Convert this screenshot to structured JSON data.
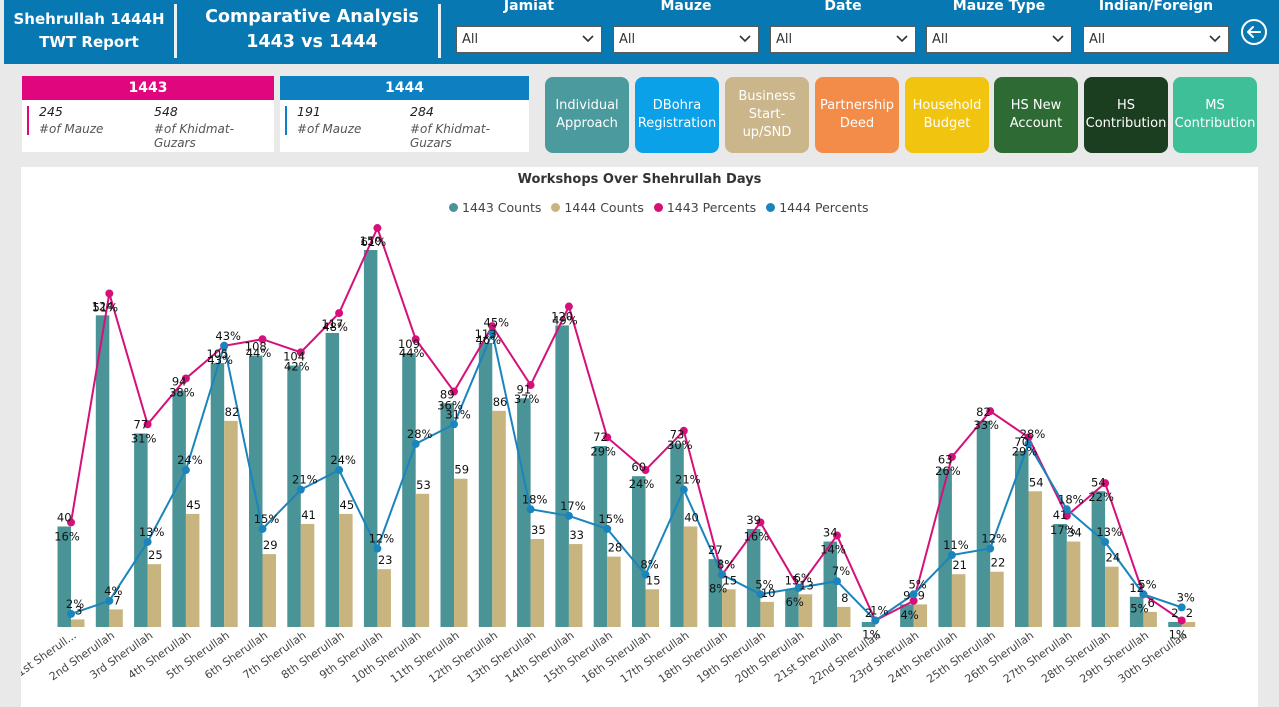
{
  "header": {
    "title_line1": "Shehrullah 1444H",
    "title_line2": "TWT Report",
    "analysis_line1": "Comparative Analysis",
    "analysis_line2": "1443 vs 1444",
    "filters": [
      {
        "label": "Jamiat",
        "value": "All"
      },
      {
        "label": "Mauze",
        "value": "All"
      },
      {
        "label": "Date",
        "value": "All"
      },
      {
        "label": "Mauze Type",
        "value": "All"
      },
      {
        "label": "Indian/Foreign",
        "value": "All"
      }
    ]
  },
  "kpis": [
    {
      "year": "1443",
      "color": "#e0067e",
      "mauze": "245",
      "mauze_label": "#of Mauze",
      "khidmat": "548",
      "khidmat_label": "#of Khidmat-Guzars"
    },
    {
      "year": "1444",
      "color": "#0e7fc0",
      "mauze": "191",
      "mauze_label": "#of Mauze",
      "khidmat": "284",
      "khidmat_label": "#of Khidmat-Guzars"
    }
  ],
  "tiles": [
    {
      "label": "Individual Approach",
      "bg": "#4b9a9d",
      "fg": "#ffffff"
    },
    {
      "label": "DBohra Registration",
      "bg": "#0aa1e9",
      "fg": "#ffffff"
    },
    {
      "label": "Business Start-up/SND",
      "bg": "#cbb58a",
      "fg": "#ffffff"
    },
    {
      "label": "Partnership Deed",
      "bg": "#f28c48",
      "fg": "#ffffff"
    },
    {
      "label": "Household Budget",
      "bg": "#f1c40f",
      "fg": "#ffffff"
    },
    {
      "label": "HS New Account",
      "bg": "#2e6b34",
      "fg": "#ffffff"
    },
    {
      "label": "HS Contribution",
      "bg": "#1b3d20",
      "fg": "#ffffff"
    },
    {
      "label": "MS Contribution",
      "bg": "#3fbf98",
      "fg": "#ffffff"
    }
  ],
  "chart_data": {
    "type": "bar",
    "title": "Workshops Over Shehrullah Days",
    "categories": [
      "1st Sherull...",
      "2nd Sherullah",
      "3rd Sherullah",
      "4th Sherullah",
      "5th Sherullah",
      "6th Sherullah",
      "7th Sherullah",
      "8th Sherullah",
      "9th Sherullah",
      "10th Sherullah",
      "11th Sherullah",
      "12th Sherullah",
      "13th Sherullah",
      "14th Sherullah",
      "15th Sherullah",
      "16th Sherullah",
      "17th Sherullah",
      "18th Sherullah",
      "19th Sherullah",
      "20th Sherullah",
      "21st Sherullah",
      "22nd Sherullah",
      "23rd Sherullah",
      "24th Sherullah",
      "25th Sherullah",
      "26th Sherullah",
      "27th Sherullah",
      "28th Sherullah",
      "29th Sherullah",
      "30th Sherullah"
    ],
    "series": [
      {
        "name": "1443 Counts",
        "kind": "bar",
        "color": "#4a9396",
        "values": [
          40,
          124,
          77,
          94,
          105,
          108,
          104,
          117,
          150,
          109,
          89,
          113,
          91,
          120,
          72,
          60,
          73,
          27,
          39,
          15,
          34,
          2,
          9,
          63,
          82,
          70,
          41,
          54,
          12,
          2
        ]
      },
      {
        "name": "1444 Counts",
        "kind": "bar",
        "color": "#c8b47e",
        "values": [
          3,
          7,
          25,
          45,
          82,
          29,
          41,
          45,
          23,
          53,
          59,
          86,
          35,
          33,
          28,
          15,
          40,
          15,
          10,
          13,
          8,
          null,
          9,
          21,
          22,
          54,
          34,
          24,
          6,
          2
        ]
      },
      {
        "name": "1443 Percents",
        "kind": "line",
        "color": "#d6107a",
        "values": [
          16,
          51,
          31,
          38,
          43,
          44,
          42,
          48,
          61,
          44,
          36,
          46,
          37,
          49,
          29,
          24,
          30,
          8,
          16,
          6,
          14,
          1,
          4,
          26,
          33,
          29,
          17,
          22,
          5,
          1
        ]
      },
      {
        "name": "1444 Percents",
        "kind": "line",
        "color": "#1a85bd",
        "values": [
          2,
          4,
          13,
          24,
          43,
          15,
          21,
          24,
          12,
          28,
          31,
          45,
          18,
          17,
          15,
          8,
          21,
          8,
          5,
          6,
          7,
          1,
          5,
          11,
          12,
          28,
          18,
          13,
          5,
          3
        ]
      }
    ],
    "legend_position": "top-center",
    "grid": false
  }
}
